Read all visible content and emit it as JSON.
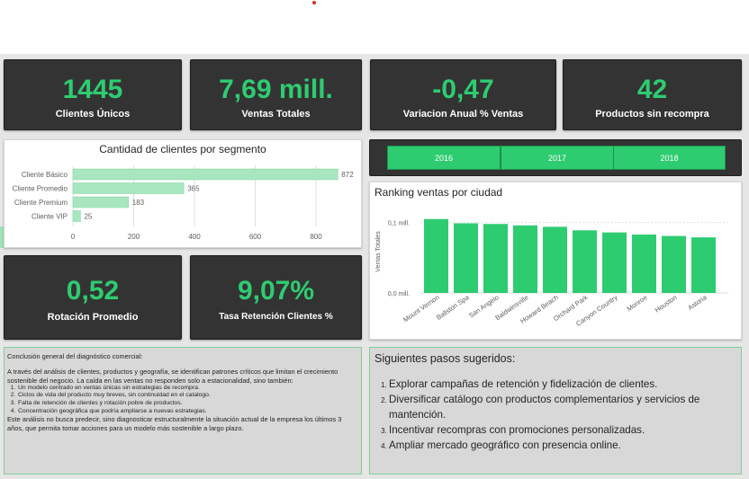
{
  "kpis": [
    {
      "value": "1445",
      "label": "Clientes Únicos"
    },
    {
      "value": "7,69 mill.",
      "label": "Ventas Totales"
    },
    {
      "value": "-0,47",
      "label": "Variacion Anual % Ventas"
    },
    {
      "value": "42",
      "label": "Productos sin recompra"
    },
    {
      "value": "0,52",
      "label": "Rotación Promedio"
    },
    {
      "value": "9,07%",
      "label": "Tasa Retención Clientes %"
    }
  ],
  "slicer": {
    "years": [
      "2016",
      "2017",
      "2018"
    ]
  },
  "segment_chart": {
    "title": "Cantidad de clientes por segmento",
    "x_ticks": [
      "0",
      "200",
      "400",
      "600",
      "800"
    ]
  },
  "ranking_chart": {
    "title": "Ranking ventas por ciudad",
    "ylabel": "Ventas Totales",
    "y_ticks": [
      "0,1 mill.",
      "0,0 mill."
    ]
  },
  "chart_data": [
    {
      "type": "bar",
      "orientation": "horizontal",
      "title": "Cantidad de clientes por segmento",
      "categories": [
        "Cliente Básico",
        "Cliente Promedio",
        "Cliente Premium",
        "Cliente VIP"
      ],
      "values": [
        872,
        365,
        183,
        25
      ],
      "data_labels": [
        "872",
        "365",
        "183",
        "25"
      ],
      "xlim": [
        0,
        900
      ],
      "x_ticks": [
        0,
        200,
        400,
        600,
        800
      ],
      "grid": true,
      "color": "#a8e6bf"
    },
    {
      "type": "bar",
      "title": "Ranking ventas por ciudad",
      "ylabel": "Ventas Totales",
      "categories": [
        "Mount Vernon",
        "Ballston Spa",
        "San Angelo",
        "Baldwinsville",
        "Howard Beach",
        "Orchard Park",
        "Canyon Country",
        "Monroe",
        "Houston",
        "Astoria"
      ],
      "values": [
        0.105,
        0.099,
        0.098,
        0.096,
        0.094,
        0.089,
        0.086,
        0.083,
        0.081,
        0.079
      ],
      "ylim": [
        0,
        0.12
      ],
      "y_ticks": [
        0.0,
        0.1
      ],
      "grid": true,
      "color": "#2ecc71"
    }
  ],
  "conclusion": {
    "title": "Conclusión general del diagnóstico comercial:",
    "intro": "A través del análisis de clientes, productos y geografía, se identifican patrones críticos que limitan el crecimiento sostenible del negocio. La caída en las ventas no responden solo a estacionalidad, sino también:",
    "items": [
      "Un modelo centrado en ventas únicas sin estrategias de recompra.",
      "Ciclos de vida del producto muy breves, sin continuidad en el catalogo.",
      "Falta de retención de clientes y rotación pobre de productos.",
      "Concentración geográfica que podría ampliarse a nuevas estrategias."
    ],
    "closing": "Este análisis no busca predecir, sino diagnosticar estructuralmente la situación actual de la empresa los últimos 3 años, que permita tomar acciones para un modelo más sostenible a largo plazo."
  },
  "next_steps": {
    "title": "Siguientes pasos sugeridos:",
    "items": [
      "Explorar campañas de retención y fidelización de clientes.",
      "Diversificar catálogo con productos complementarios y servicios de mantención.",
      "Incentivar recompras con promociones personalizadas.",
      "Ampliar mercado geográfico con presencia online."
    ]
  }
}
